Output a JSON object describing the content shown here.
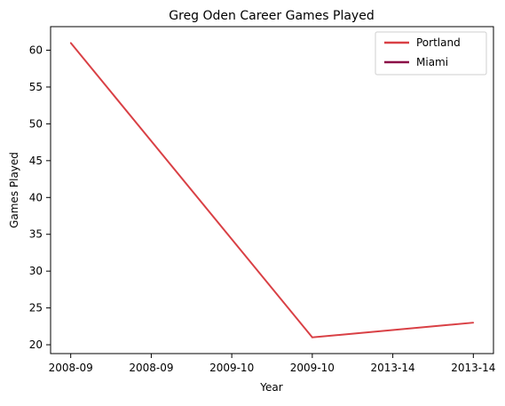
{
  "chart_data": {
    "type": "line",
    "title": "Greg Oden Career Games Played",
    "xlabel": "Year",
    "ylabel": "Games Played",
    "x_tick_labels": [
      "2008-09",
      "2008-09",
      "2009-10",
      "2009-10",
      "2013-14",
      "2013-14"
    ],
    "x_positions": [
      0,
      1,
      2,
      3,
      4,
      5
    ],
    "xlim": [
      -0.25,
      5.25
    ],
    "ylim": [
      18.8,
      63.2
    ],
    "y_ticks": [
      20,
      25,
      30,
      35,
      40,
      45,
      50,
      55,
      60
    ],
    "series": [
      {
        "name": "Portland",
        "color": "#d94045",
        "points": [
          {
            "x": 0,
            "y": 61
          },
          {
            "x": 3,
            "y": 21
          },
          {
            "x": 5,
            "y": 23
          }
        ]
      },
      {
        "name": "Miami",
        "color": "#8b0d47",
        "points": []
      }
    ],
    "legend": {
      "position": "upper-right"
    },
    "grid": false
  }
}
